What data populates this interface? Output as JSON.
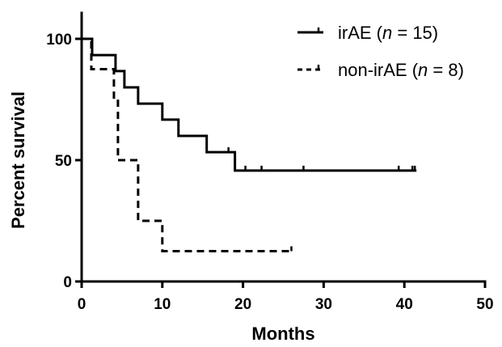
{
  "chart_data": {
    "type": "line",
    "subtype": "kaplan-meier",
    "xlabel": "Months",
    "ylabel": "Percent survival",
    "xlim": [
      0,
      50
    ],
    "ylim": [
      0,
      100
    ],
    "xticks": [
      0,
      10,
      20,
      30,
      40,
      50
    ],
    "yticks": [
      0,
      50,
      100
    ],
    "grid": false,
    "legend_position": "top-right",
    "series": [
      {
        "name": "irAE",
        "n_label": "n",
        "n_value": "= 15)",
        "line_style": "solid",
        "color": "#000000",
        "steps": [
          [
            0,
            100
          ],
          [
            1.3,
            93.3
          ],
          [
            4.2,
            86.7
          ],
          [
            5.3,
            80.0
          ],
          [
            7.0,
            73.3
          ],
          [
            10.0,
            66.7
          ],
          [
            12.0,
            60.0
          ],
          [
            15.5,
            53.3
          ],
          [
            19.0,
            45.7
          ]
        ],
        "end": 41.5,
        "censored": [
          18.2,
          20.3,
          22.3,
          27.5,
          39.3,
          41.0,
          41.3
        ]
      },
      {
        "name": "non-irAE",
        "n_label": "n",
        "n_value": "= 8)",
        "line_style": "dashed",
        "color": "#000000",
        "steps": [
          [
            0,
            100
          ],
          [
            1.2,
            87.5
          ],
          [
            4.0,
            75.0
          ],
          [
            4.5,
            50.0
          ],
          [
            7.0,
            25.0
          ],
          [
            10.0,
            12.5
          ]
        ],
        "end": 26.0,
        "censored": [
          26.0
        ]
      }
    ]
  }
}
